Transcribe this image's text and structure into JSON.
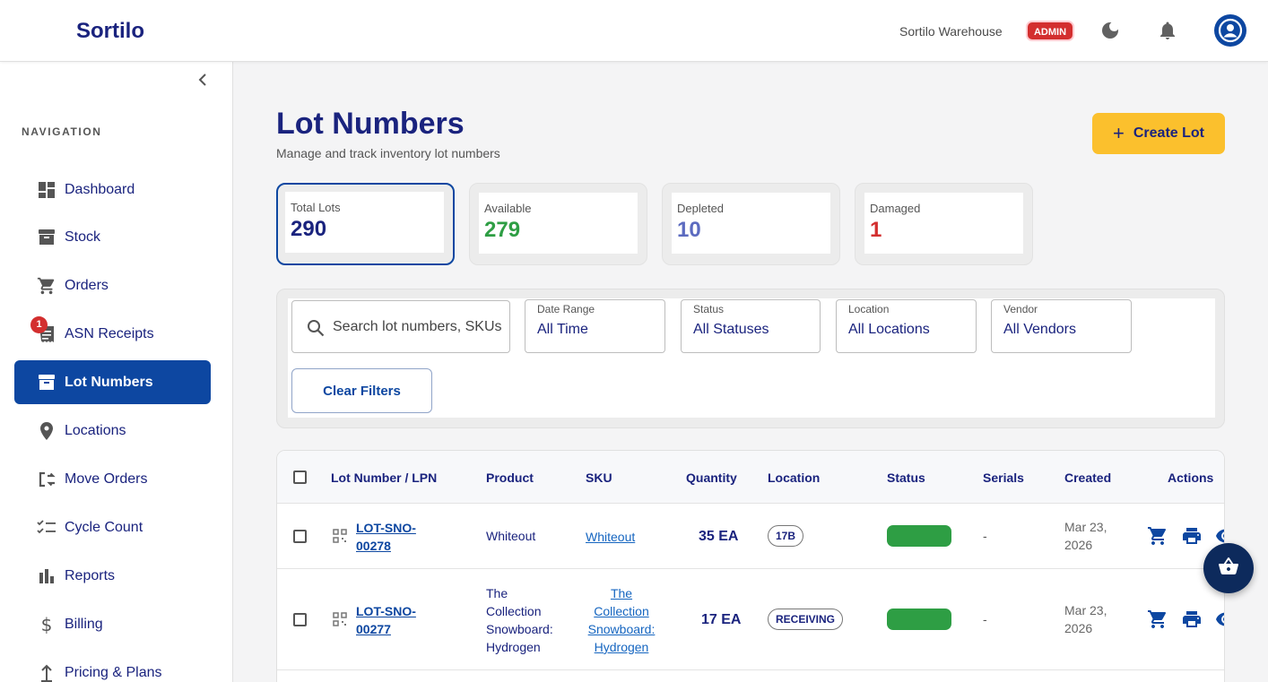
{
  "header": {
    "brand": "Sortilo",
    "warehouse": "Sortilo Warehouse",
    "role_badge": "ADMIN",
    "icons": [
      "dark-mode-icon",
      "notifications-icon",
      "account-icon"
    ]
  },
  "sidebar": {
    "heading": "NAVIGATION",
    "items": [
      {
        "label": "Dashboard",
        "icon": "dashboard-icon"
      },
      {
        "label": "Stock",
        "icon": "archive-icon"
      },
      {
        "label": "Orders",
        "icon": "cart-icon"
      },
      {
        "label": "ASN Receipts",
        "icon": "receipt-icon",
        "badge": "1"
      },
      {
        "label": "Lot Numbers",
        "icon": "archive-icon",
        "active": true
      },
      {
        "label": "Locations",
        "icon": "location-pin-icon"
      },
      {
        "label": "Move Orders",
        "icon": "move-icon"
      },
      {
        "label": "Cycle Count",
        "icon": "checklist-icon"
      },
      {
        "label": "Reports",
        "icon": "bar-chart-icon"
      },
      {
        "label": "Billing",
        "icon": "dollar-icon"
      },
      {
        "label": "Pricing & Plans",
        "icon": "upload-icon"
      }
    ]
  },
  "page": {
    "title": "Lot Numbers",
    "subtitle": "Manage and track inventory lot numbers",
    "create_label": "Create Lot"
  },
  "stats": [
    {
      "label": "Total Lots",
      "value": "290",
      "color": "#1a237e"
    },
    {
      "label": "Available",
      "value": "279",
      "color": "#2e9e44"
    },
    {
      "label": "Depleted",
      "value": "10",
      "color": "#5c6bc0"
    },
    {
      "label": "Damaged",
      "value": "1",
      "color": "#d32f2f"
    }
  ],
  "filters": {
    "search_placeholder": "Search lot numbers, SKUs",
    "date_range": {
      "label": "Date Range",
      "value": "All Time"
    },
    "status": {
      "label": "Status",
      "value": "All Statuses"
    },
    "location": {
      "label": "Location",
      "value": "All Locations"
    },
    "vendor": {
      "label": "Vendor",
      "value": "All Vendors"
    },
    "clear_label": "Clear Filters"
  },
  "table": {
    "columns": [
      "Lot Number / LPN",
      "Product",
      "SKU",
      "Quantity",
      "Location",
      "Status",
      "Serials",
      "Created",
      "Actions"
    ],
    "rows": [
      {
        "lot_line1": "LOT-SNO-",
        "lot_line2": "00278",
        "product": [
          "Whiteout"
        ],
        "sku": [
          "Whiteout"
        ],
        "quantity": "35 EA",
        "location": "17B",
        "status_color": "#2e9e44",
        "serials": "-",
        "created_line1": "Mar 23,",
        "created_line2": "2026"
      },
      {
        "lot_line1": "LOT-SNO-",
        "lot_line2": "00277",
        "product": [
          "The",
          "Collection",
          "Snowboard:",
          "Hydrogen"
        ],
        "sku": [
          "The",
          "Collection",
          "Snowboard:",
          "Hydrogen"
        ],
        "quantity": "17 EA",
        "location": "RECEIVING",
        "status_color": "#2e9e44",
        "serials": "-",
        "created_line1": "Mar 23,",
        "created_line2": "2026"
      }
    ]
  }
}
